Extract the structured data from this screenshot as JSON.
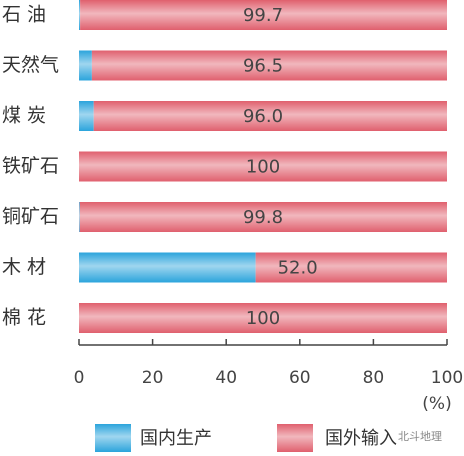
{
  "chart_data": {
    "type": "stacked-barh",
    "categories": [
      "石 油",
      "天然气",
      "煤 炭",
      "铁矿石",
      "铜矿石",
      "木 材",
      "棉 花"
    ],
    "series": [
      {
        "name": "国内生产",
        "color": "#2ba4dc",
        "values": [
          0.3,
          3.5,
          4.0,
          0,
          0.2,
          48.0,
          0
        ]
      },
      {
        "name": "国外输入",
        "color": "#e0606e",
        "values": [
          99.7,
          96.5,
          96.0,
          100,
          99.8,
          52.0,
          100
        ],
        "value_labels": [
          "99.7",
          "96.5",
          "96.0",
          "100",
          "99.8",
          "52.0",
          "100"
        ]
      }
    ],
    "xlim": [
      0,
      100
    ],
    "xticks": [
      0,
      20,
      40,
      60,
      80,
      100
    ],
    "x_axis_label": "(%)",
    "legend": "bottom",
    "watermark": "北斗地理"
  }
}
